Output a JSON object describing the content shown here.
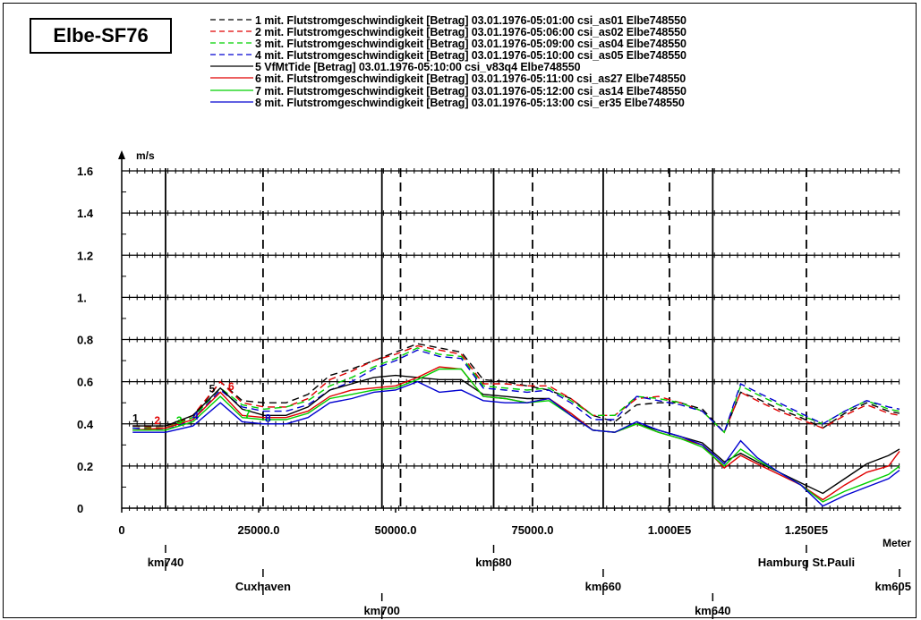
{
  "title_box": "Elbe-SF76",
  "chart_data": {
    "type": "line",
    "ylabel": "m/s",
    "xlabel": "Meter",
    "xlim": [
      0,
      142000
    ],
    "ylim": [
      0,
      1.6
    ],
    "grid": false,
    "y_ticks": [
      {
        "value": 0,
        "label": "0"
      },
      {
        "value": 0.2,
        "label": "0.2"
      },
      {
        "value": 0.4,
        "label": "0.4"
      },
      {
        "value": 0.6,
        "label": "0.6"
      },
      {
        "value": 0.8,
        "label": "0.8"
      },
      {
        "value": 1.0,
        "label": "1."
      },
      {
        "value": 1.2,
        "label": "1.2"
      },
      {
        "value": 1.4,
        "label": "1.4"
      },
      {
        "value": 1.6,
        "label": "1.6"
      }
    ],
    "x_ticks": [
      {
        "value": 0,
        "label": "0"
      },
      {
        "value": 25000,
        "label": "25000.0"
      },
      {
        "value": 50000,
        "label": "50000.0"
      },
      {
        "value": 75000,
        "label": "75000.0"
      },
      {
        "value": 100000,
        "label": "1.000E5"
      },
      {
        "value": 125000,
        "label": "1.250E5"
      }
    ],
    "vertical_lines": [
      {
        "x": 8000,
        "style": "solid"
      },
      {
        "x": 25800,
        "style": "dashed"
      },
      {
        "x": 47500,
        "style": "solid"
      },
      {
        "x": 50900,
        "style": "dashed"
      },
      {
        "x": 67900,
        "style": "solid"
      },
      {
        "x": 75000,
        "style": "dashed"
      },
      {
        "x": 87900,
        "style": "solid"
      },
      {
        "x": 100000,
        "style": "dashed"
      },
      {
        "x": 107900,
        "style": "solid"
      },
      {
        "x": 125000,
        "style": "dashed"
      }
    ],
    "km_markers": [
      {
        "label": "km740",
        "x": 8000,
        "row": 0
      },
      {
        "label": "Cuxhaven",
        "x": 25800,
        "row": 1
      },
      {
        "label": "km700",
        "x": 47500,
        "row": 2
      },
      {
        "label": "km680",
        "x": 67900,
        "row": 0
      },
      {
        "label": "km660",
        "x": 87900,
        "row": 1
      },
      {
        "label": "km640",
        "x": 107900,
        "row": 2
      },
      {
        "label": "Hamburg St.Pauli",
        "x": 125000,
        "row": 0
      },
      {
        "label": "km605",
        "x": 142000,
        "row": 1
      }
    ],
    "x": [
      2000,
      8000,
      13000,
      18000,
      22000,
      26000,
      30000,
      34000,
      38000,
      42000,
      46000,
      50000,
      54000,
      58000,
      62000,
      66000,
      70000,
      74000,
      78000,
      82000,
      86000,
      90000,
      94000,
      98000,
      102000,
      106000,
      110000,
      113000,
      116000,
      120000,
      124000,
      128000,
      132000,
      136000,
      140000,
      142000
    ],
    "series": [
      {
        "name": "1 mit. Flutstromgeschwindigkeit [Betrag] 03.01.1976-05:01:00 csi_as01 Elbe748550",
        "color": "#000000",
        "dash": "dashed",
        "values": [
          0.39,
          0.39,
          0.43,
          0.6,
          0.51,
          0.5,
          0.5,
          0.54,
          0.63,
          0.66,
          0.7,
          0.74,
          0.78,
          0.76,
          0.74,
          0.61,
          0.6,
          0.58,
          0.56,
          0.52,
          0.44,
          0.41,
          0.49,
          0.5,
          0.5,
          0.47,
          0.36,
          0.55,
          0.52,
          0.47,
          0.43,
          0.38,
          0.45,
          0.5,
          0.46,
          0.45
        ]
      },
      {
        "name": "2 mit. Flutstromgeschwindigkeit [Betrag] 03.01.1976-05:06:00 csi_as02 Elbe748550",
        "color": "#e00000",
        "dash": "dashed",
        "values": [
          0.39,
          0.38,
          0.44,
          0.6,
          0.5,
          0.48,
          0.48,
          0.52,
          0.61,
          0.65,
          0.7,
          0.73,
          0.77,
          0.75,
          0.73,
          0.59,
          0.59,
          0.58,
          0.58,
          0.52,
          0.44,
          0.44,
          0.52,
          0.53,
          0.5,
          0.46,
          0.36,
          0.55,
          0.51,
          0.46,
          0.42,
          0.38,
          0.44,
          0.49,
          0.45,
          0.44
        ]
      },
      {
        "name": "3 mit. Flutstromgeschwindigkeit [Betrag] 03.01.1976-05:09:00 csi_as04 Elbe748550",
        "color": "#00d000",
        "dash": "dashed",
        "values": [
          0.38,
          0.38,
          0.43,
          0.57,
          0.49,
          0.47,
          0.48,
          0.51,
          0.58,
          0.62,
          0.67,
          0.71,
          0.76,
          0.73,
          0.72,
          0.58,
          0.57,
          0.56,
          0.57,
          0.51,
          0.44,
          0.44,
          0.53,
          0.52,
          0.5,
          0.46,
          0.36,
          0.58,
          0.54,
          0.49,
          0.44,
          0.4,
          0.46,
          0.51,
          0.47,
          0.46
        ]
      },
      {
        "name": "4 mit. Flutstromgeschwindigkeit [Betrag] 03.01.1976-05:10:00 csi_as05 Elbe748550",
        "color": "#0000d0",
        "dash": "dashed",
        "values": [
          0.38,
          0.37,
          0.42,
          0.56,
          0.48,
          0.46,
          0.46,
          0.49,
          0.56,
          0.6,
          0.66,
          0.7,
          0.75,
          0.72,
          0.71,
          0.57,
          0.56,
          0.55,
          0.56,
          0.5,
          0.42,
          0.42,
          0.53,
          0.51,
          0.49,
          0.46,
          0.36,
          0.59,
          0.55,
          0.5,
          0.45,
          0.4,
          0.46,
          0.51,
          0.48,
          0.47
        ]
      },
      {
        "name": "5 VfMtTide [Betrag] 03.01.1976-05:10:00 csi_v83q4 Elbe748550",
        "color": "#000000",
        "dash": "solid",
        "values": [
          0.39,
          0.39,
          0.44,
          0.57,
          0.47,
          0.44,
          0.44,
          0.48,
          0.56,
          0.59,
          0.62,
          0.63,
          0.62,
          0.61,
          0.61,
          0.54,
          0.53,
          0.52,
          0.52,
          0.45,
          0.37,
          0.36,
          0.4,
          0.37,
          0.34,
          0.31,
          0.22,
          0.26,
          0.22,
          0.17,
          0.12,
          0.07,
          0.14,
          0.21,
          0.25,
          0.28
        ]
      },
      {
        "name": "6 mit. Flutstromgeschwindigkeit [Betrag] 03.01.1976-05:11:00 csi_as27 Elbe748550",
        "color": "#e00000",
        "dash": "solid",
        "values": [
          0.37,
          0.38,
          0.42,
          0.55,
          0.44,
          0.43,
          0.43,
          0.46,
          0.53,
          0.56,
          0.57,
          0.58,
          0.62,
          0.67,
          0.66,
          0.53,
          0.52,
          0.5,
          0.52,
          0.45,
          0.37,
          0.36,
          0.4,
          0.36,
          0.33,
          0.3,
          0.19,
          0.25,
          0.21,
          0.16,
          0.11,
          0.04,
          0.11,
          0.17,
          0.2,
          0.27
        ]
      },
      {
        "name": "7 mit. Flutstromgeschwindigkeit [Betrag] 03.01.1976-05:12:00 csi_as14 Elbe748550",
        "color": "#00d000",
        "dash": "solid",
        "values": [
          0.37,
          0.37,
          0.41,
          0.53,
          0.43,
          0.42,
          0.42,
          0.45,
          0.52,
          0.54,
          0.56,
          0.57,
          0.61,
          0.66,
          0.66,
          0.53,
          0.52,
          0.5,
          0.51,
          0.44,
          0.37,
          0.36,
          0.4,
          0.36,
          0.33,
          0.29,
          0.2,
          0.28,
          0.23,
          0.17,
          0.11,
          0.03,
          0.08,
          0.12,
          0.16,
          0.2
        ]
      },
      {
        "name": "8 mit. Flutstromgeschwindigkeit [Betrag] 03.01.1976-05:13:00 csi_er35 Elbe748550",
        "color": "#0000d0",
        "dash": "solid",
        "values": [
          0.36,
          0.36,
          0.39,
          0.5,
          0.41,
          0.4,
          0.4,
          0.43,
          0.5,
          0.52,
          0.55,
          0.56,
          0.6,
          0.55,
          0.56,
          0.51,
          0.5,
          0.5,
          0.52,
          0.44,
          0.37,
          0.36,
          0.41,
          0.37,
          0.34,
          0.3,
          0.21,
          0.32,
          0.24,
          0.17,
          0.11,
          0.01,
          0.06,
          0.1,
          0.14,
          0.18
        ]
      }
    ],
    "series_number_labels": [
      {
        "text": "1",
        "x": 2500,
        "y": 0.41,
        "color": "#000000"
      },
      {
        "text": "2",
        "x": 6500,
        "y": 0.4,
        "color": "#e00000"
      },
      {
        "text": "3",
        "x": 10500,
        "y": 0.4,
        "color": "#00d000"
      },
      {
        "text": "4",
        "x": 13500,
        "y": 0.42,
        "color": "#0000d0"
      },
      {
        "text": "5",
        "x": 16500,
        "y": 0.55,
        "color": "#000000"
      },
      {
        "text": "6",
        "x": 20000,
        "y": 0.56,
        "color": "#e00000"
      },
      {
        "text": "7",
        "x": 23000,
        "y": 0.43,
        "color": "#00d000"
      },
      {
        "text": "8",
        "x": 26700,
        "y": 0.41,
        "color": "#0000d0"
      }
    ]
  }
}
